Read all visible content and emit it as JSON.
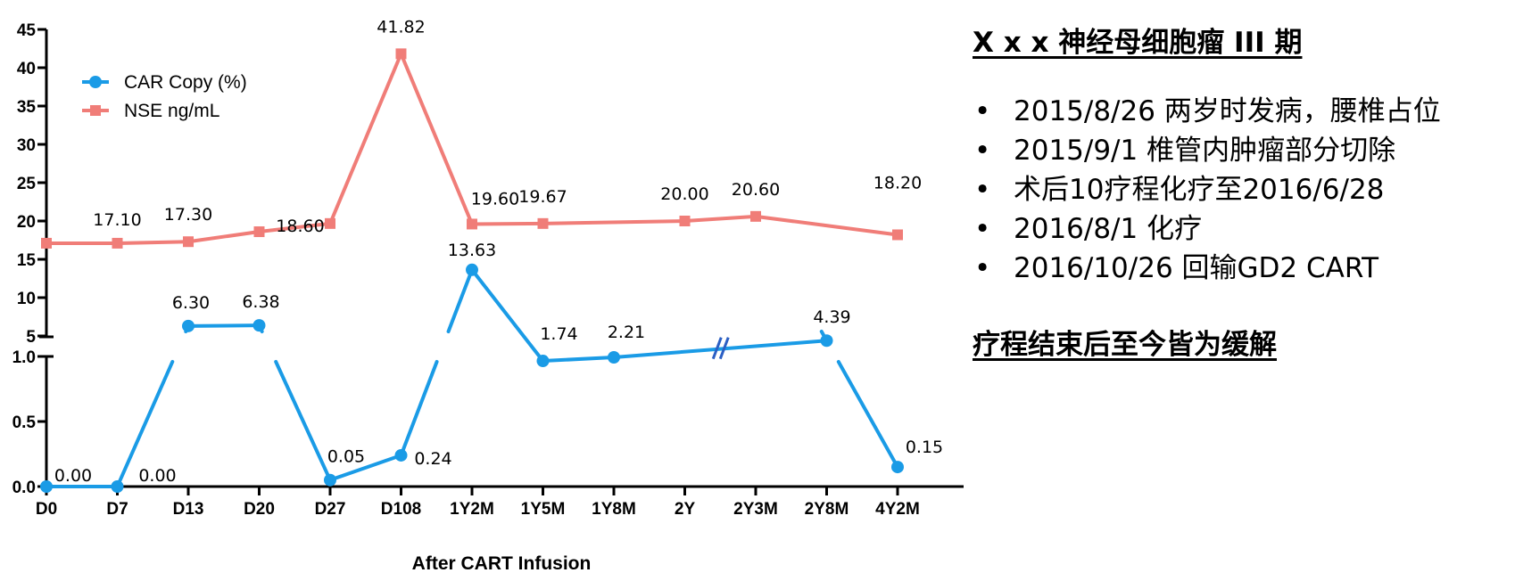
{
  "chart_data": {
    "type": "line",
    "categories": [
      "D0",
      "D7",
      "D13",
      "D20",
      "D27",
      "D108",
      "1Y2M",
      "1Y5M",
      "1Y8M",
      "2Y",
      "2Y3M",
      "2Y8M",
      "4Y2M"
    ],
    "series": [
      {
        "name": "CAR Copy (%)",
        "color": "#1a9be6",
        "marker": "circle",
        "values": [
          0.0,
          0.0,
          6.3,
          6.38,
          0.05,
          0.24,
          13.63,
          1.74,
          2.21,
          null,
          null,
          4.39,
          0.15
        ],
        "labels": [
          "0.00",
          "0.00",
          "6.30",
          "6.38",
          "0.05",
          "0.24",
          "13.63",
          "1.74",
          "2.21",
          "",
          "",
          "4.39",
          "0.15"
        ]
      },
      {
        "name": "NSE ng/mL",
        "color": "#f07d78",
        "marker": "square",
        "values": [
          17.1,
          17.1,
          17.3,
          18.6,
          19.67,
          41.82,
          19.6,
          19.67,
          null,
          20.0,
          20.6,
          null,
          18.2
        ],
        "labels": [
          "",
          "17.10",
          "17.30",
          "18.60",
          "",
          "41.82",
          "19.60",
          "19.67",
          "",
          "20.00",
          "20.60",
          "",
          "18.20"
        ]
      }
    ],
    "xlabel": "After CART Infusion",
    "ylabel": "",
    "y_axis_segments": {
      "lower": {
        "range": [
          0,
          1.0
        ],
        "ticks": [
          "0.0",
          "0.5",
          "1.0"
        ]
      },
      "upper": {
        "range": [
          0,
          45
        ],
        "ticks": [
          "5",
          "10",
          "15",
          "20",
          "25",
          "30",
          "35",
          "40",
          "45"
        ]
      }
    },
    "axis_break": "between 1.0 and 5",
    "x_break_mark": "between 2Y and 2Y3M",
    "legend_position": "top-left",
    "grid": false
  },
  "info": {
    "title": "X x x 神经母细胞瘤 III 期",
    "bullet_symbol": "•",
    "bullets": [
      "2015/8/26 两岁时发病，腰椎占位",
      "2015/9/1   椎管内肿瘤部分切除",
      "术后10疗程化疗至2016/6/28",
      "2016/8/1 化疗",
      "2016/10/26 回输GD2 CART"
    ],
    "footer": "疗程结束后至今皆为缓解"
  }
}
